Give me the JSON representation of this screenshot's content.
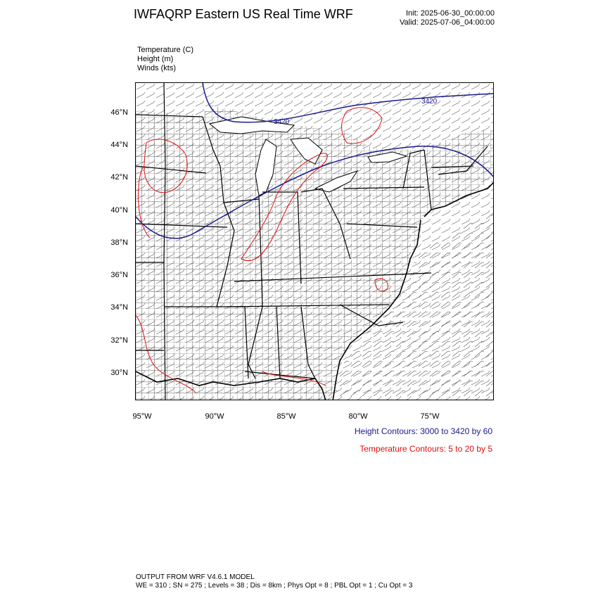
{
  "title": "IWFAQRP Eastern US Real Time WRF",
  "run": {
    "init": "Init: 2025-06-30_00:00:00",
    "valid": "Valid: 2025-07-06_04:00:00"
  },
  "fields": {
    "temperature": "Temperature   (C)",
    "height": "Height   (m)",
    "winds": "Winds   (kts)"
  },
  "map": {
    "lat_labels": [
      "46°N",
      "44°N",
      "42°N",
      "40°N",
      "38°N",
      "36°N",
      "34°N",
      "32°N",
      "30°N"
    ],
    "lon_labels": [
      "95°W",
      "90°W",
      "85°W",
      "80°W",
      "75°W"
    ],
    "contour_labels": [
      "3420",
      "3420"
    ],
    "colors": {
      "height": "#1a1a8c",
      "temperature": "#e01010",
      "boundaries": "#000000"
    }
  },
  "legend": {
    "height": "Height Contours: 3000 to 3420 by 60",
    "temperature": "Temperature Contours: 5 to 20 by 5"
  },
  "footer": {
    "line1": "OUTPUT FROM WRF V4.6.1 MODEL",
    "line2": "WE = 310 ; SN = 275 ; Levels = 38 ; Dis = 8km ; Phys Opt = 8 ; PBL Opt = 1 ; Cu Opt = 3"
  }
}
